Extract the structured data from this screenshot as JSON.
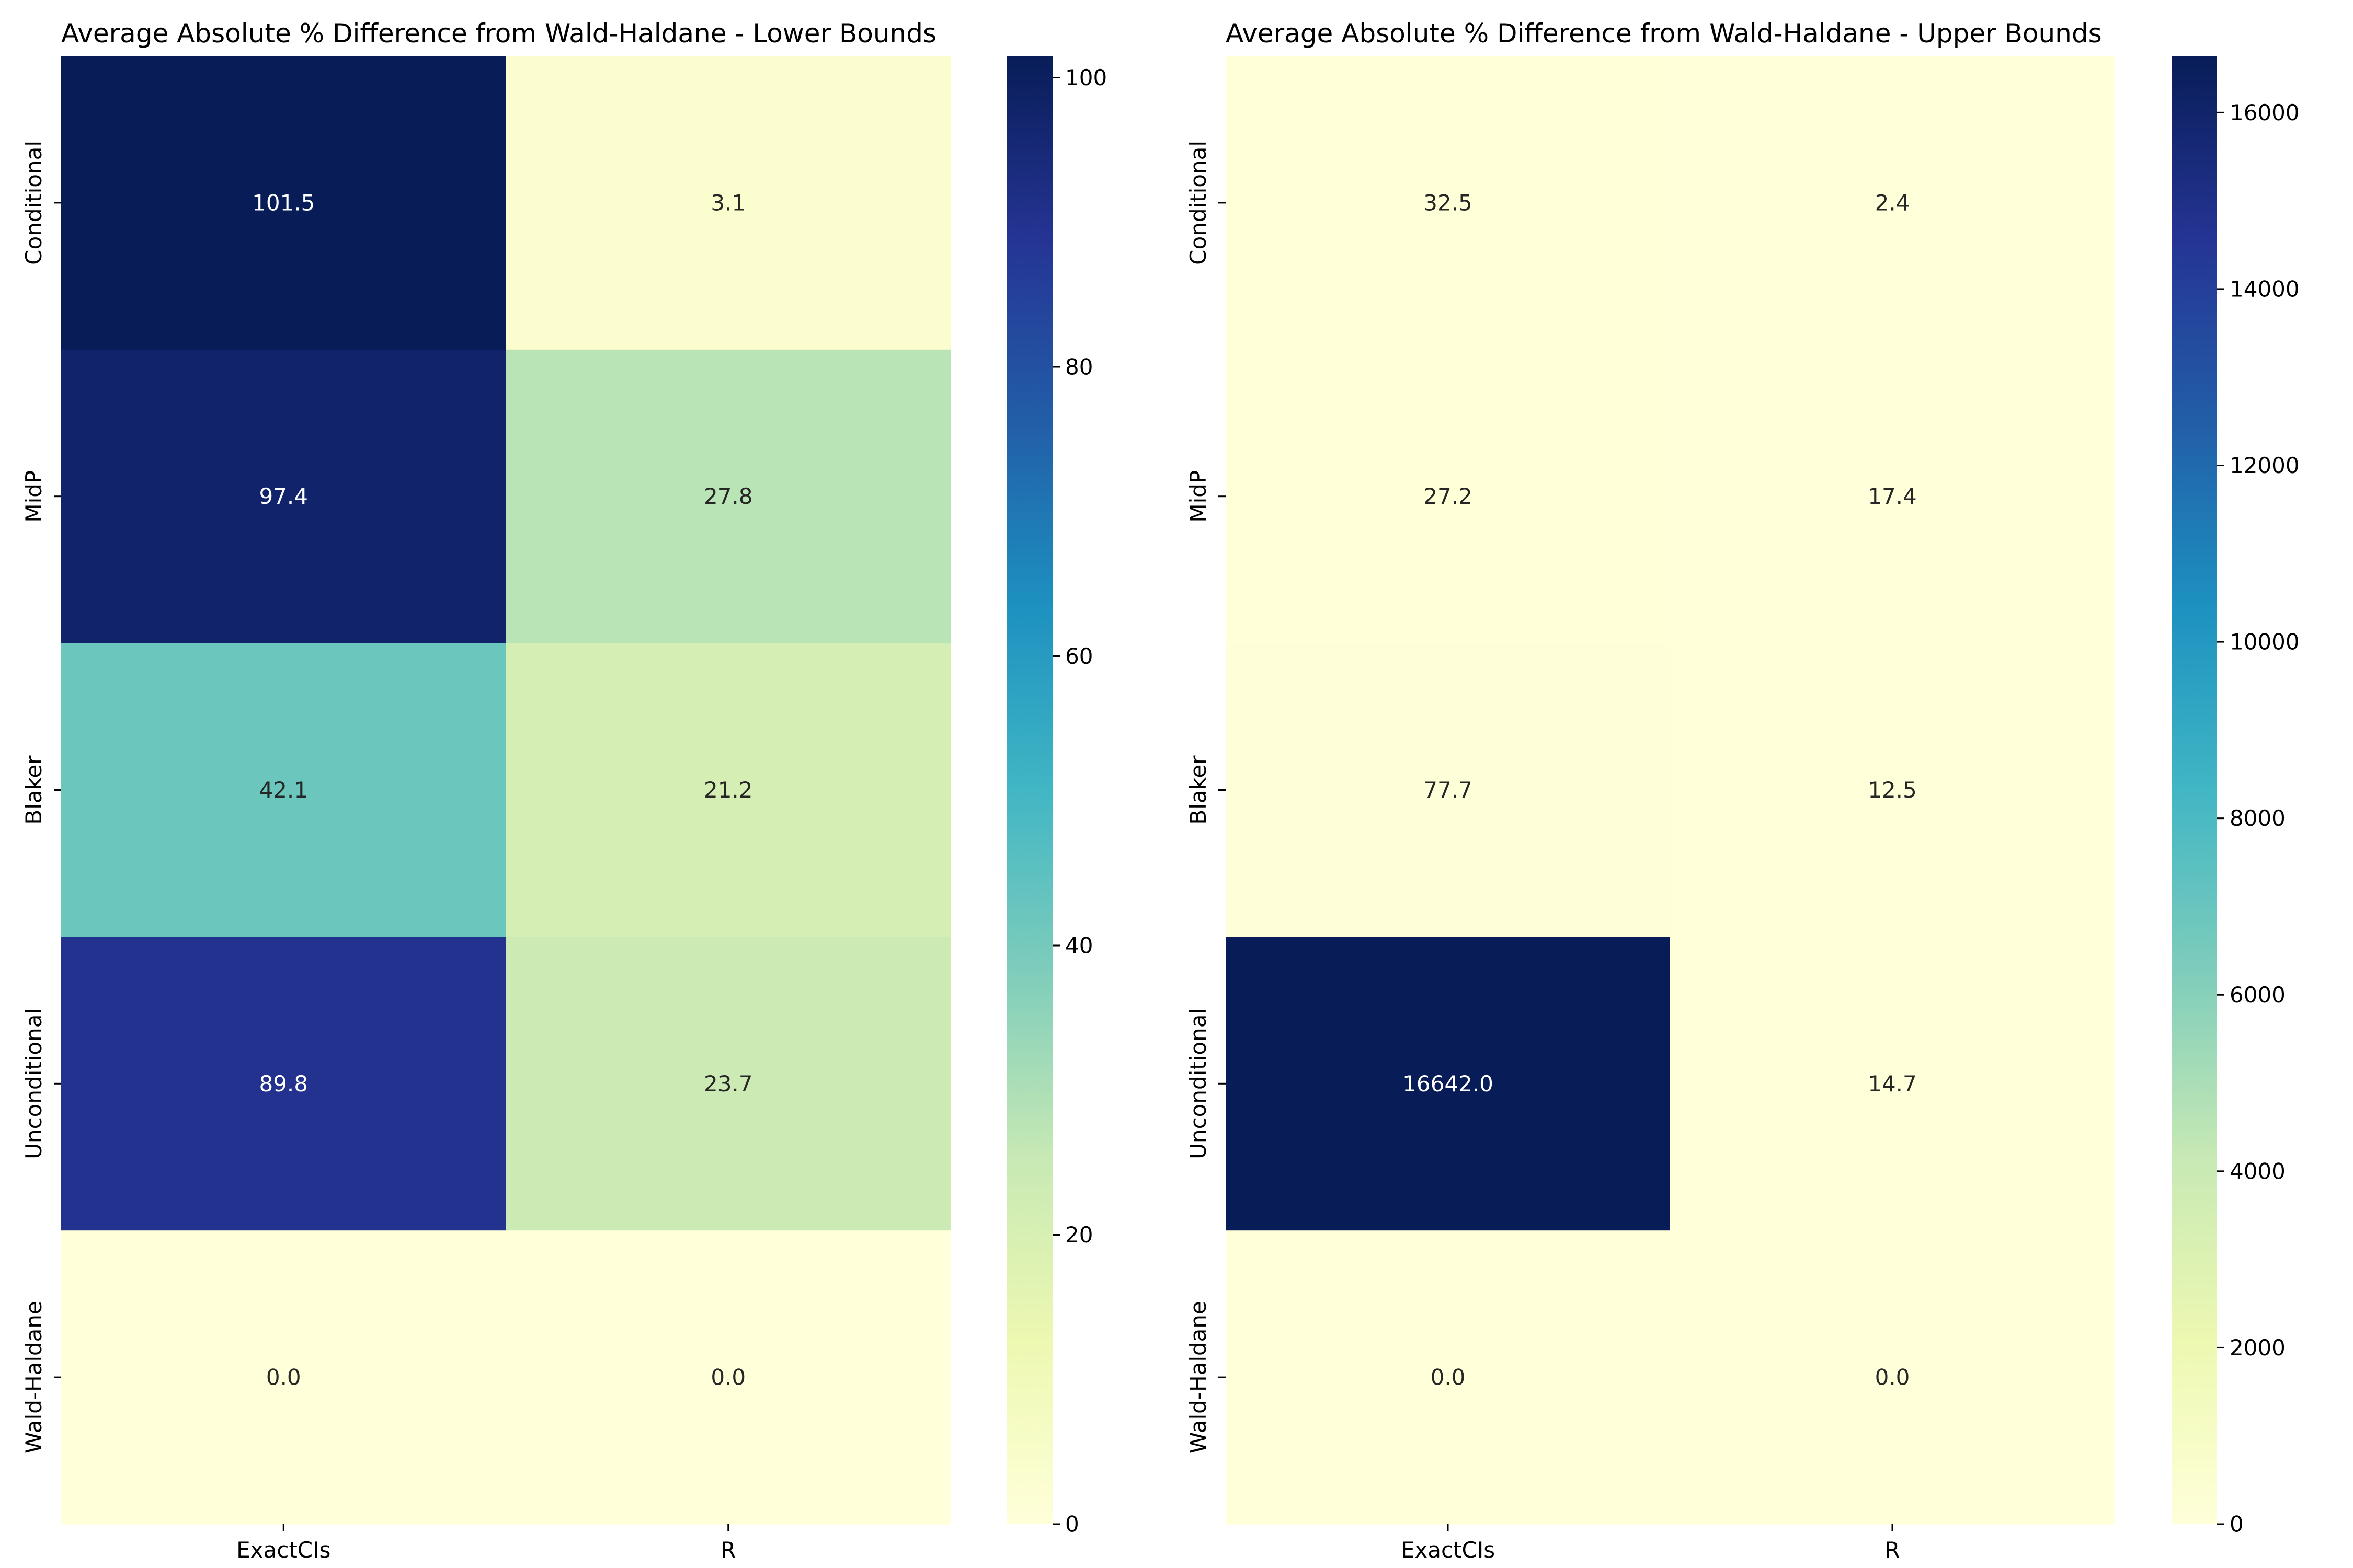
{
  "colormap": [
    "#ffffd9",
    "#edf8b1",
    "#c7e9b4",
    "#7fcdbb",
    "#41b6c4",
    "#1d91c0",
    "#225ea8",
    "#253494",
    "#081d58"
  ],
  "charts": [
    {
      "title": "Average Absolute % Difference from Wald-Haldane - Lower Bounds",
      "colorbar_ticks": [
        "0",
        "20",
        "40",
        "60",
        "80",
        "100"
      ]
    },
    {
      "title": "Average Absolute % Difference from Wald-Haldane - Upper Bounds",
      "colorbar_ticks": [
        "0",
        "2000",
        "4000",
        "6000",
        "8000",
        "10000",
        "12000",
        "14000",
        "16000"
      ]
    }
  ],
  "chart_data": [
    {
      "type": "heatmap",
      "title": "Average Absolute % Difference from Wald-Haldane - Lower Bounds",
      "rows": [
        "Conditional",
        "MidP",
        "Blaker",
        "Unconditional",
        "Wald-Haldane"
      ],
      "columns": [
        "ExactCIs",
        "R"
      ],
      "values": [
        [
          101.5,
          3.1
        ],
        [
          97.4,
          27.8
        ],
        [
          42.1,
          21.2
        ],
        [
          89.8,
          23.7
        ],
        [
          0.0,
          0.0
        ]
      ],
      "labels": [
        [
          "101.5",
          "3.1"
        ],
        [
          "97.4",
          "27.8"
        ],
        [
          "42.1",
          "21.2"
        ],
        [
          "89.8",
          "23.7"
        ],
        [
          "0.0",
          "0.0"
        ]
      ],
      "vmin": 0,
      "vmax": 101.5,
      "colorbar_ticks": [
        0,
        20,
        40,
        60,
        80,
        100
      ]
    },
    {
      "type": "heatmap",
      "title": "Average Absolute % Difference from Wald-Haldane - Upper Bounds",
      "rows": [
        "Conditional",
        "MidP",
        "Blaker",
        "Unconditional",
        "Wald-Haldane"
      ],
      "columns": [
        "ExactCIs",
        "R"
      ],
      "values": [
        [
          32.5,
          2.4
        ],
        [
          27.2,
          17.4
        ],
        [
          77.7,
          12.5
        ],
        [
          16642.0,
          14.7
        ],
        [
          0.0,
          0.0
        ]
      ],
      "labels": [
        [
          "32.5",
          "2.4"
        ],
        [
          "27.2",
          "17.4"
        ],
        [
          "77.7",
          "12.5"
        ],
        [
          "16642.0",
          "14.7"
        ],
        [
          "0.0",
          "0.0"
        ]
      ],
      "vmin": 0,
      "vmax": 16642.0,
      "colorbar_ticks": [
        0,
        2000,
        4000,
        6000,
        8000,
        10000,
        12000,
        14000,
        16000
      ]
    }
  ]
}
